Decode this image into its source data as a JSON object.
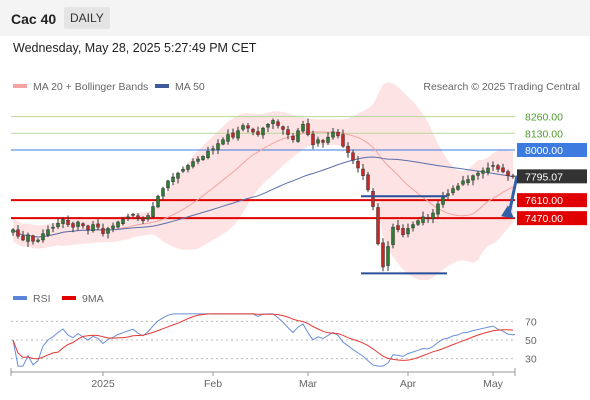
{
  "header": {
    "title": "Cac 40",
    "timeframe": "DAILY"
  },
  "datetime": "Wednesday, May 28, 2025 5:27:49 PM CET",
  "legend": {
    "ma20_label": "MA 20 + Bollinger Bands",
    "ma50_label": "MA 50",
    "credit": "Research © 2025 Trading Central",
    "rsi_label": "RSI",
    "rsi_ma_label": "9MA"
  },
  "colors": {
    "ma20": "#f4a3a3",
    "bollinger_fill": "#fde0e0",
    "ma50": "#5a6fa8",
    "resistance_line": "#b9d79a",
    "pivot_line": "#3d7be0",
    "support_line": "#e00000",
    "last_price_tag": "#333333",
    "candle_up": "#2e7d32",
    "candle_down": "#c62828",
    "rsi": "#6a8fd8",
    "rsi_ma": "#e53935",
    "arrow": "#3060a8"
  },
  "chart_data": [
    {
      "type": "candlestick",
      "title": "Cac 40",
      "timeframe": "DAILY",
      "x_labels": [
        "2025",
        "Feb",
        "Mar",
        "Apr",
        "May"
      ],
      "ylim": [
        6950,
        8420
      ],
      "last_price": 7795.07,
      "levels": [
        {
          "value": 8260.0,
          "label": "8260.00",
          "kind": "resistance"
        },
        {
          "value": 8130.0,
          "label": "8130.00",
          "kind": "resistance"
        },
        {
          "value": 8000.0,
          "label": "8000.00",
          "kind": "pivot"
        },
        {
          "value": 7610.0,
          "label": "7610.00",
          "kind": "support"
        },
        {
          "value": 7470.0,
          "label": "7470.00",
          "kind": "support"
        }
      ],
      "last_price_label": "7795.07",
      "close_series": [
        7380,
        7330,
        7300,
        7340,
        7290,
        7300,
        7350,
        7380,
        7400,
        7430,
        7460,
        7420,
        7400,
        7440,
        7410,
        7380,
        7420,
        7400,
        7350,
        7390,
        7410,
        7440,
        7460,
        7480,
        7500,
        7470,
        7450,
        7490,
        7560,
        7640,
        7700,
        7760,
        7790,
        7820,
        7850,
        7880,
        7910,
        7930,
        7950,
        7990,
        8010,
        8050,
        8080,
        8120,
        8100,
        8150,
        8190,
        8170,
        8140,
        8120,
        8170,
        8200,
        8230,
        8190,
        8160,
        8120,
        8080,
        8150,
        8200,
        8120,
        8040,
        8080,
        8060,
        8100,
        8140,
        8110,
        8030,
        7980,
        7920,
        7860,
        7800,
        7690,
        7560,
        7270,
        7090,
        7250,
        7400,
        7380,
        7340,
        7390,
        7420,
        7450,
        7480,
        7470,
        7510,
        7580,
        7640,
        7660,
        7700,
        7720,
        7760,
        7770,
        7800,
        7820,
        7840,
        7860,
        7880,
        7850,
        7830,
        7800,
        7795.07
      ],
      "ma_periods": [
        20,
        50
      ],
      "bollinger": {
        "period": 20,
        "stddev": 2
      }
    },
    {
      "type": "line",
      "title": "RSI",
      "ylim": [
        20,
        80
      ],
      "y_ticks": [
        30,
        50,
        70
      ],
      "series": [
        {
          "name": "RSI",
          "source": "rsi_14_of_close"
        },
        {
          "name": "9MA",
          "source": "sma_9_of_rsi"
        }
      ]
    }
  ]
}
